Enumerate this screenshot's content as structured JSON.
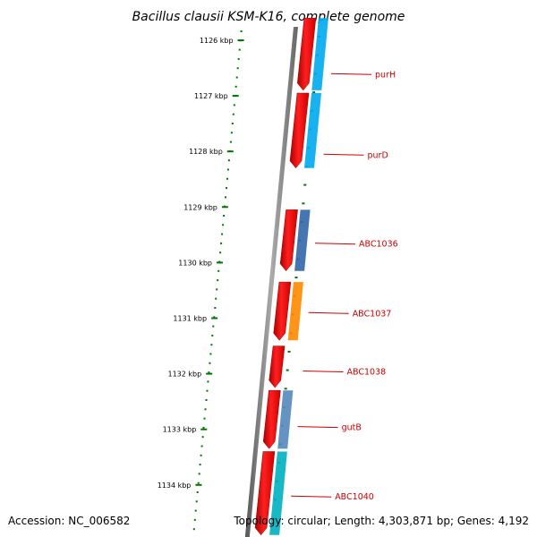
{
  "title": "Bacillus clausii KSM-K16, complete genome",
  "footer": {
    "accession": "Accession: NC_006582",
    "topology": "Topology: circular; Length: 4,303,871 bp; Genes: 4,192"
  },
  "scale_ticks": [
    {
      "label": "1126 kbp",
      "kbp": 1126
    },
    {
      "label": "1127 kbp",
      "kbp": 1127
    },
    {
      "label": "1128 kbp",
      "kbp": 1128
    },
    {
      "label": "1129 kbp",
      "kbp": 1129
    },
    {
      "label": "1130 kbp",
      "kbp": 1130
    },
    {
      "label": "1131 kbp",
      "kbp": 1131
    },
    {
      "label": "1132 kbp",
      "kbp": 1132
    },
    {
      "label": "1133 kbp",
      "kbp": 1133
    },
    {
      "label": "1134 kbp",
      "kbp": 1134
    }
  ],
  "gene_labels": [
    {
      "name": "purH",
      "kbp": 1126.6
    },
    {
      "name": "purD",
      "kbp": 1128.05
    },
    {
      "name": "ABC1036",
      "kbp": 1129.65
    },
    {
      "name": "ABC1037",
      "kbp": 1130.9
    },
    {
      "name": "ABC1038",
      "kbp": 1131.95
    },
    {
      "name": "gutB",
      "kbp": 1132.95
    },
    {
      "name": "ABC1040",
      "kbp": 1134.2
    }
  ],
  "genes": [
    {
      "start": 1125.6,
      "end": 1126.9,
      "cog_color": "#00aaee"
    },
    {
      "start": 1126.95,
      "end": 1128.3,
      "cog_color": "#00aaee"
    },
    {
      "start": 1129.05,
      "end": 1130.15,
      "cog_color": "#3366aa"
    },
    {
      "start": 1130.35,
      "end": 1131.4,
      "cog_color": "#ff8800"
    },
    {
      "start": 1131.5,
      "end": 1132.25,
      "cog_color": ""
    },
    {
      "start": 1132.3,
      "end": 1133.35,
      "cog_color": "#5588bb"
    },
    {
      "start": 1133.4,
      "end": 1134.9,
      "cog_color": "#00b0c0"
    }
  ],
  "colors": {
    "backbone": "#808080",
    "gene_strand": "#ee0000",
    "gc_skew_dots": "#007700",
    "label_text": "#cc0000"
  }
}
